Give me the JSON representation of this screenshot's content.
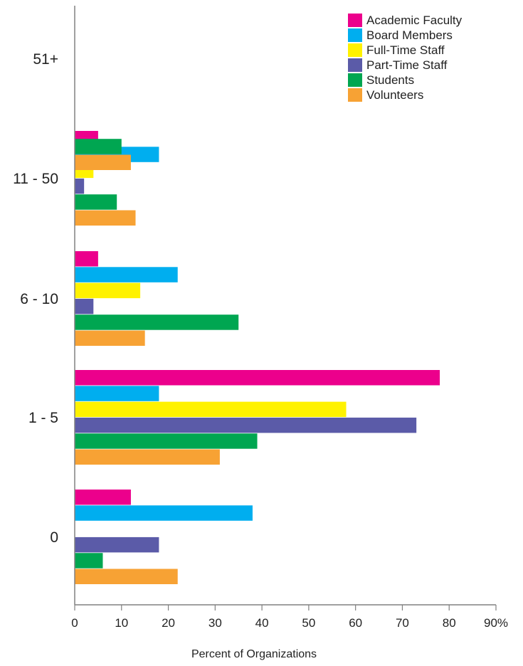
{
  "chart_data": {
    "type": "bar",
    "orientation": "horizontal",
    "categories": [
      "51+",
      "11 - 50",
      "6 - 10",
      "1 - 5",
      "0"
    ],
    "series": [
      {
        "name": "Academic Faculty",
        "color": "#ec008c",
        "values": [
          0,
          5,
          5,
          78,
          12
        ]
      },
      {
        "name": "Board Members",
        "color": "#00aeef",
        "values": [
          0,
          18,
          22,
          18,
          38
        ]
      },
      {
        "name": "Full-Time Staff",
        "color": "#fff200",
        "values": [
          0,
          4,
          14,
          58,
          0
        ]
      },
      {
        "name": "Part-Time Staff",
        "color": "#5b5ba8",
        "values": [
          0,
          2,
          4,
          73,
          18
        ]
      },
      {
        "name": "Students",
        "color": "#00a651",
        "values": [
          10,
          9,
          35,
          39,
          6
        ]
      },
      {
        "name": "Volunteers",
        "color": "#f7a234",
        "values": [
          12,
          13,
          15,
          31,
          22
        ]
      }
    ],
    "xlim": [
      0,
      90
    ],
    "x_ticks": [
      "0",
      "10",
      "20",
      "30",
      "40",
      "50",
      "60",
      "70",
      "80",
      "90%"
    ],
    "xlabel": "Percent of Organizations",
    "ylabel": "",
    "legend_position": "top-right",
    "grid": false
  }
}
